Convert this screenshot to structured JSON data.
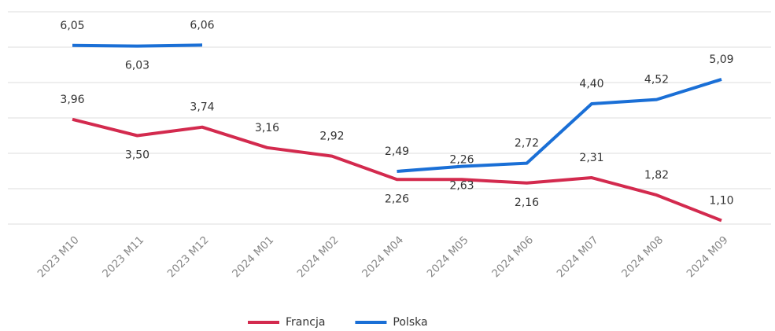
{
  "chart_data": {
    "type": "line",
    "categories": [
      "2023 M10",
      "2023 M11",
      "2023 M12",
      "2024 M01",
      "2024 M02",
      "2024 M04",
      "2024 M05",
      "2024 M06",
      "2024 M07",
      "2024 M08",
      "2024 M09"
    ],
    "series": [
      {
        "name": "Francja",
        "color": "#d32a4e",
        "values": [
          3.96,
          3.5,
          3.74,
          3.16,
          2.92,
          2.26,
          2.26,
          2.16,
          2.31,
          1.82,
          1.1
        ],
        "value_labels": [
          "3,96",
          "3,50",
          "3,74",
          "3,16",
          "2,92",
          "2,26",
          "2,26",
          "2,16",
          "2,31",
          "1,82",
          "1,10"
        ]
      },
      {
        "name": "Polska",
        "color": "#1a6fd6",
        "values": [
          6.05,
          6.03,
          6.06,
          null,
          null,
          2.49,
          2.63,
          2.72,
          4.4,
          4.52,
          5.09
        ],
        "value_labels": [
          "6,05",
          "6,03",
          "6,06",
          null,
          null,
          "2,49",
          "2,63",
          "2,72",
          "4,40",
          "4,52",
          "5,09"
        ]
      }
    ],
    "ylim": [
      1,
      7
    ],
    "yticks": [
      1,
      2,
      3,
      4,
      5,
      6,
      7
    ],
    "grid": true,
    "legend": "bottom"
  }
}
